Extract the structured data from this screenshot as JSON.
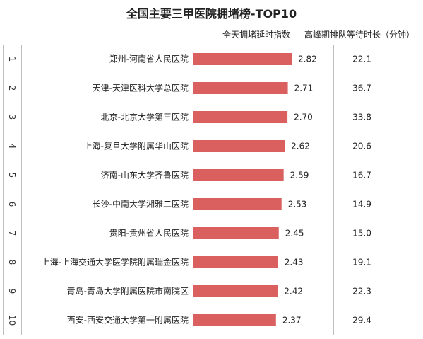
{
  "title": "全国主要三甲医院拥堵榜-TOP10",
  "headers": {
    "metric": "全天拥堵延时指数",
    "wait": "高峰期排队等待时长（分钟）"
  },
  "colors": {
    "bar": "#d9605f",
    "border": "#bfbfbf",
    "text": "#222222"
  },
  "chart_data": {
    "type": "bar",
    "orientation": "horizontal",
    "title": "全国主要三甲医院拥堵榜-TOP10",
    "ranks": [
      "1",
      "2",
      "3",
      "4",
      "5",
      "6",
      "7",
      "8",
      "9",
      "10"
    ],
    "categories": [
      "郑州-河南省人民医院",
      "天津-天津医科大学总医院",
      "北京-北京大学第三医院",
      "上海-复旦大学附属华山医院",
      "济南-山东大学齐鲁医院",
      "长沙-中南大学湘雅二医院",
      "贵阳-贵州省人民医院",
      "上海-上海交通大学医学院附属瑞金医院",
      "青岛-青岛大学附属医院市南院区",
      "西安-西安交通大学第一附属医院"
    ],
    "series": [
      {
        "name": "全天拥堵延时指数",
        "values": [
          2.82,
          2.71,
          2.7,
          2.62,
          2.59,
          2.53,
          2.45,
          2.43,
          2.42,
          2.37
        ],
        "labels": [
          "2.82",
          "2.71",
          "2.70",
          "2.62",
          "2.59",
          "2.53",
          "2.45",
          "2.43",
          "2.42",
          "2.37"
        ]
      },
      {
        "name": "高峰期排队等待时长（分钟）",
        "values": [
          22.1,
          36.7,
          33.8,
          20.6,
          16.7,
          14.9,
          15.0,
          19.1,
          22.3,
          29.4
        ],
        "labels": [
          "22.1",
          "36.7",
          "33.8",
          "20.6",
          "16.7",
          "14.9",
          "15.0",
          "19.1",
          "22.3",
          "29.4"
        ]
      }
    ],
    "xlim": [
      0,
      2.82
    ],
    "grid": false,
    "legend": "none"
  }
}
